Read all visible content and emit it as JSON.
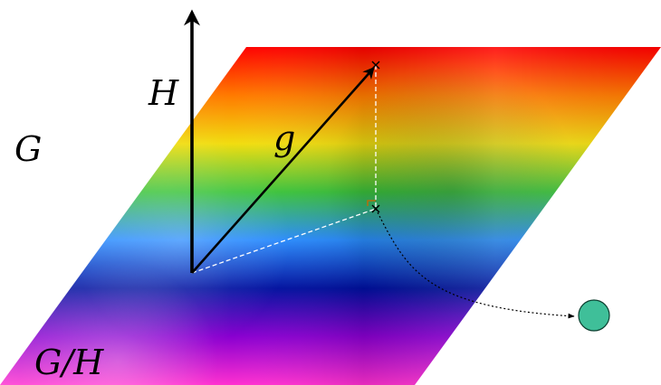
{
  "labels": {
    "ambient_space": "G",
    "subgroup_axis": "H",
    "group_element": "g",
    "quotient_space": "G/H"
  },
  "colors": {
    "plane_spectrum": [
      "#ff0000",
      "#ff7a00",
      "#f1dd10",
      "#3cc43c",
      "#2a8cff",
      "#0010a0",
      "#8a00d0",
      "#ff2fd0"
    ],
    "vector_stroke": "#000000",
    "guide_line": "#ffffff",
    "right_angle_mark": "#cc6600",
    "mapping_path": "#000000",
    "quotient_point_fill": "#3fbf99",
    "quotient_point_stroke": "#0b3d2e"
  },
  "icons": {
    "point_marker": "cross-icon",
    "quotient_point": "circle-icon"
  }
}
